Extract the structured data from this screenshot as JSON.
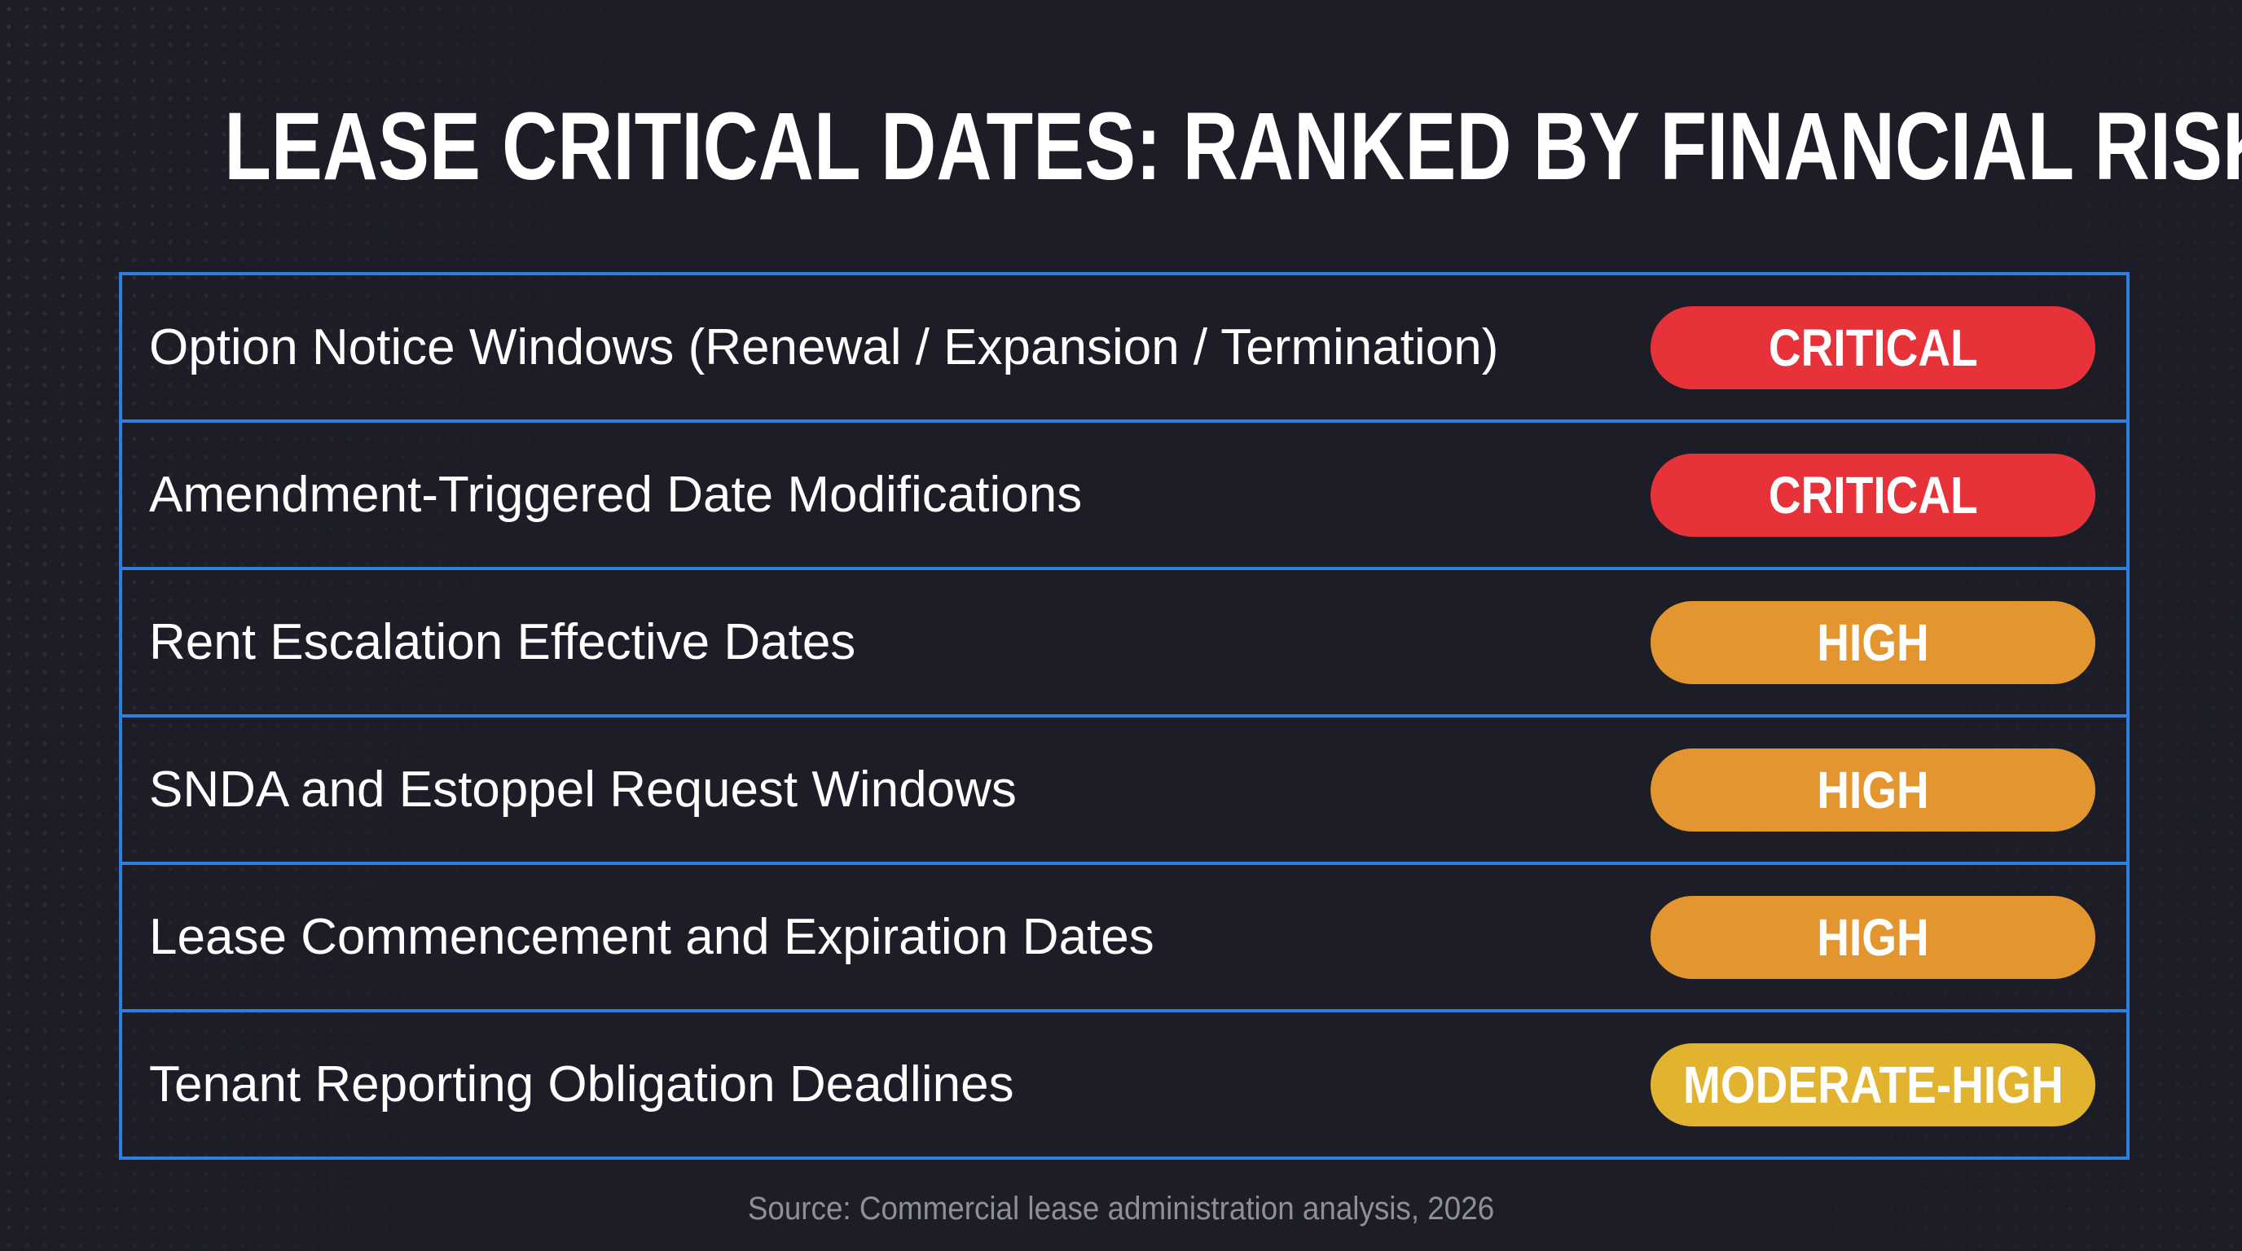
{
  "title": "LEASE CRITICAL DATES: RANKED BY FINANCIAL RISK",
  "risk_colors": {
    "CRITICAL": "#e8323a",
    "HIGH": "#e39530",
    "MODERATE-HIGH": "#e2b32f"
  },
  "rows": [
    {
      "label": "Option Notice Windows (Renewal / Expansion / Termination)",
      "risk": "CRITICAL"
    },
    {
      "label": "Amendment-Triggered Date Modifications",
      "risk": "CRITICAL"
    },
    {
      "label": "Rent Escalation Effective Dates",
      "risk": "HIGH"
    },
    {
      "label": "SNDA and Estoppel Request Windows",
      "risk": "HIGH"
    },
    {
      "label": "Lease Commencement and Expiration Dates",
      "risk": "HIGH"
    },
    {
      "label": "Tenant Reporting Obligation Deadlines",
      "risk": "MODERATE-HIGH"
    }
  ],
  "source": "Source: Commercial lease administration analysis, 2026"
}
